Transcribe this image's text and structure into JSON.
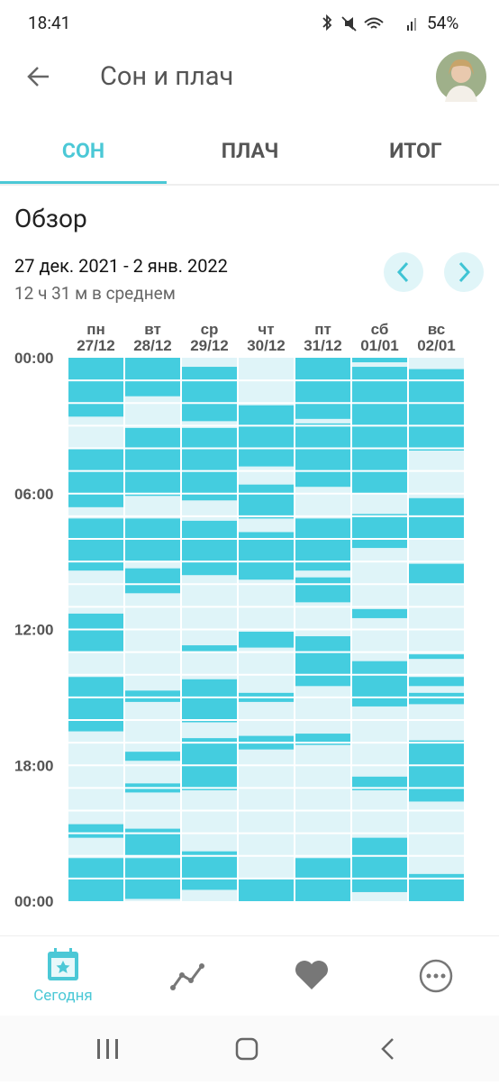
{
  "status_bar": {
    "time": "18:41",
    "battery": "54%"
  },
  "header": {
    "title": "Сон и плач"
  },
  "tabs": [
    "СОН",
    "ПЛАЧ",
    "ИТОГ"
  ],
  "section": {
    "title": "Обзор",
    "date_range": "27 дек. 2021 - 2 янв. 2022",
    "average": "12 ч 31 м в среднем"
  },
  "chart_data": {
    "type": "sleep-grid",
    "ylim": [
      0,
      24
    ],
    "yticks": [
      {
        "value": 0,
        "label": "00:00"
      },
      {
        "value": 6,
        "label": "06:00"
      },
      {
        "value": 12,
        "label": "12:00"
      },
      {
        "value": 18,
        "label": "18:00"
      },
      {
        "value": 24,
        "label": "00:00"
      }
    ],
    "color": "#44cddf",
    "background": "#dff4f8",
    "days": [
      {
        "name": "пн",
        "date": "27/12",
        "intervals": [
          [
            0,
            2.6
          ],
          [
            4.0,
            6.6
          ],
          [
            7.1,
            9.4
          ],
          [
            11.3,
            13.0
          ],
          [
            14.1,
            16.5
          ],
          [
            20.6,
            21.2
          ],
          [
            22.1,
            24
          ]
        ]
      },
      {
        "name": "вт",
        "date": "28/12",
        "intervals": [
          [
            0,
            1.7
          ],
          [
            3.1,
            6.1
          ],
          [
            7.1,
            9.0
          ],
          [
            9.3,
            10.4
          ],
          [
            14.7,
            15.2
          ],
          [
            17.4,
            17.8
          ],
          [
            18.8,
            19.2
          ],
          [
            20.8,
            22.0
          ],
          [
            22.1,
            23.9
          ]
        ]
      },
      {
        "name": "ср",
        "date": "29/12",
        "intervals": [
          [
            0.4,
            2.8
          ],
          [
            3.1,
            6.3
          ],
          [
            7.2,
            9.6
          ],
          [
            12.7,
            13.0
          ],
          [
            14.2,
            16.1
          ],
          [
            16.8,
            19.1
          ],
          [
            21.8,
            23.5
          ]
        ]
      },
      {
        "name": "чт",
        "date": "30/12",
        "intervals": [
          [
            2.1,
            4.8
          ],
          [
            5.6,
            7.1
          ],
          [
            7.7,
            9.8
          ],
          [
            12.1,
            12.8
          ],
          [
            14.8,
            15.2
          ],
          [
            16.7,
            17.3
          ],
          [
            23.0,
            24
          ]
        ]
      },
      {
        "name": "пт",
        "date": "31/12",
        "intervals": [
          [
            0,
            2.7
          ],
          [
            2.9,
            5.7
          ],
          [
            7.1,
            9.4
          ],
          [
            9.7,
            10.8
          ],
          [
            12.3,
            14.5
          ],
          [
            16.6,
            17.1
          ],
          [
            22.1,
            24
          ]
        ]
      },
      {
        "name": "сб",
        "date": "01/01",
        "intervals": [
          [
            0,
            0.2
          ],
          [
            0.4,
            6.0
          ],
          [
            6.9,
            8.4
          ],
          [
            11.1,
            11.5
          ],
          [
            13.4,
            15.4
          ],
          [
            18.5,
            19.1
          ],
          [
            21.2,
            23.6
          ]
        ]
      },
      {
        "name": "вс",
        "date": "02/01",
        "intervals": [
          [
            0.5,
            4.1
          ],
          [
            6.2,
            8.0
          ],
          [
            9.1,
            10.0
          ],
          [
            13.1,
            13.3
          ],
          [
            14.1,
            14.5
          ],
          [
            14.8,
            15.3
          ],
          [
            16.9,
            19.6
          ],
          [
            22.8,
            24
          ]
        ]
      }
    ]
  },
  "bottom_nav": {
    "today": "Сегодня"
  }
}
